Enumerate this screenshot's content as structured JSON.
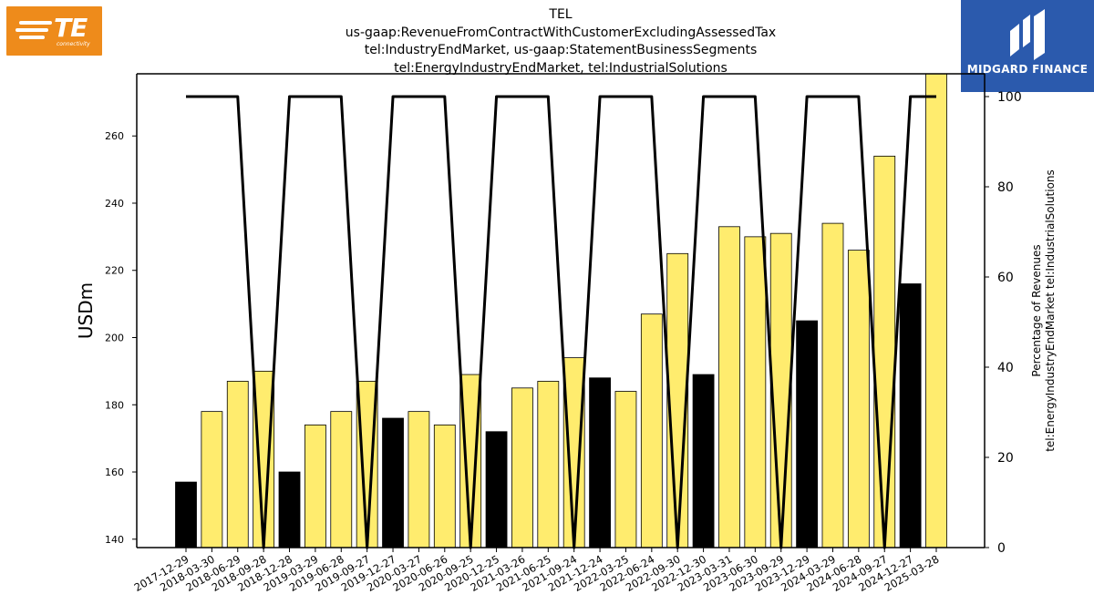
{
  "header": {
    "title_lines": [
      "TEL",
      "us-gaap:RevenueFromContractWithCustomerExcludingAssessedTax",
      "tel:IndustryEndMarket, us-gaap:StatementBusinessSegments",
      "tel:EnergyIndustryEndMarket, tel:IndustrialSolutions"
    ]
  },
  "logos": {
    "left": {
      "text": "TE",
      "subtext": "connectivity",
      "color": "#ee8b1b"
    },
    "right": {
      "text": "MIDGARD FINANCE",
      "color": "#2b5aad"
    }
  },
  "chart_data": {
    "type": "bar",
    "ylabel": "USDm",
    "y2label_lines": [
      "Percentage of Revenues",
      "tel:EnergyIndustryEndMarket tel:IndustrialSolutions"
    ],
    "ylim": [
      137.5,
      278.5
    ],
    "y2lim": [
      0,
      100
    ],
    "yticks": [
      140,
      160,
      180,
      200,
      220,
      240,
      260
    ],
    "y2ticks": [
      0,
      20,
      40,
      60,
      80,
      100
    ],
    "grid": false,
    "colors": {
      "yellow": "#ffec6e",
      "black": "#000000"
    },
    "categories": [
      "2017-12-29",
      "2018-03-30",
      "2018-06-29",
      "2018-09-28",
      "2018-12-28",
      "2019-03-29",
      "2019-06-28",
      "2019-09-27",
      "2019-12-27",
      "2020-03-27",
      "2020-06-26",
      "2020-09-25",
      "2020-12-25",
      "2021-03-26",
      "2021-06-25",
      "2021-09-24",
      "2021-12-24",
      "2022-03-25",
      "2022-06-24",
      "2022-09-30",
      "2022-12-30",
      "2023-03-31",
      "2023-06-30",
      "2023-09-29",
      "2023-12-29",
      "2024-03-29",
      "2024-06-28",
      "2024-09-27",
      "2024-12-27",
      "2025-03-28"
    ],
    "values": [
      157,
      178,
      187,
      190,
      160,
      174,
      178,
      187,
      176,
      178,
      174,
      189,
      172,
      185,
      187,
      194,
      188,
      184,
      207,
      225,
      189,
      233,
      230,
      231,
      205,
      234,
      226,
      254,
      216,
      280
    ],
    "bar_colors": [
      "black",
      "yellow",
      "yellow",
      "yellow",
      "black",
      "yellow",
      "yellow",
      "yellow",
      "black",
      "yellow",
      "yellow",
      "yellow",
      "black",
      "yellow",
      "yellow",
      "yellow",
      "black",
      "yellow",
      "yellow",
      "yellow",
      "black",
      "yellow",
      "yellow",
      "yellow",
      "black",
      "yellow",
      "yellow",
      "yellow",
      "black",
      "yellow"
    ],
    "percentage_series": [
      100,
      100,
      100,
      0,
      100,
      100,
      100,
      0,
      100,
      100,
      100,
      0,
      100,
      100,
      100,
      0,
      100,
      100,
      100,
      0,
      100,
      100,
      100,
      0,
      100,
      100,
      100,
      0,
      100,
      100
    ]
  }
}
